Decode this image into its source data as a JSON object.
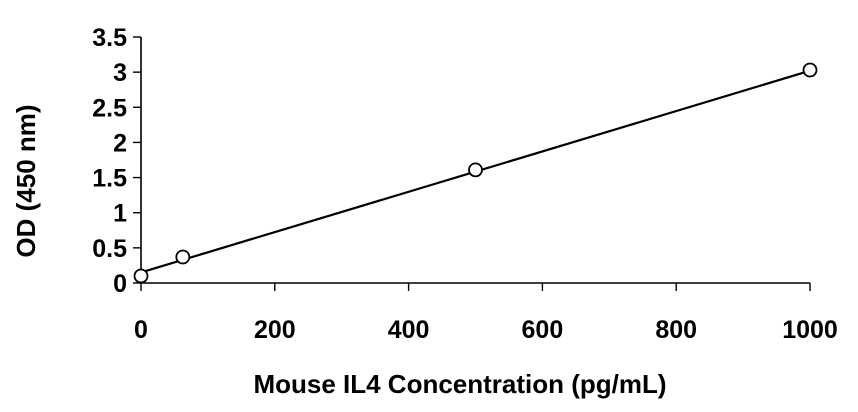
{
  "chart_data": {
    "type": "scatter",
    "title": "",
    "xlabel": "Mouse IL4 Concentration (pg/mL)",
    "ylabel": "OD (450 nm)",
    "xlim": [
      0,
      1000
    ],
    "ylim": [
      0,
      3.5
    ],
    "x_ticks": [
      0,
      200,
      400,
      600,
      800,
      1000
    ],
    "y_ticks": [
      "0",
      "0.5",
      "1",
      "1.5",
      "2",
      "2.5",
      "3",
      "3.5"
    ],
    "grid": false,
    "legend": "none",
    "trendline": {
      "type": "linear",
      "x": [
        0,
        1000
      ],
      "y": [
        0.15,
        3.02
      ]
    },
    "series": [
      {
        "x": [
          0,
          62.5,
          500,
          1000
        ],
        "y": [
          0.1,
          0.37,
          1.61,
          3.03
        ]
      }
    ]
  }
}
